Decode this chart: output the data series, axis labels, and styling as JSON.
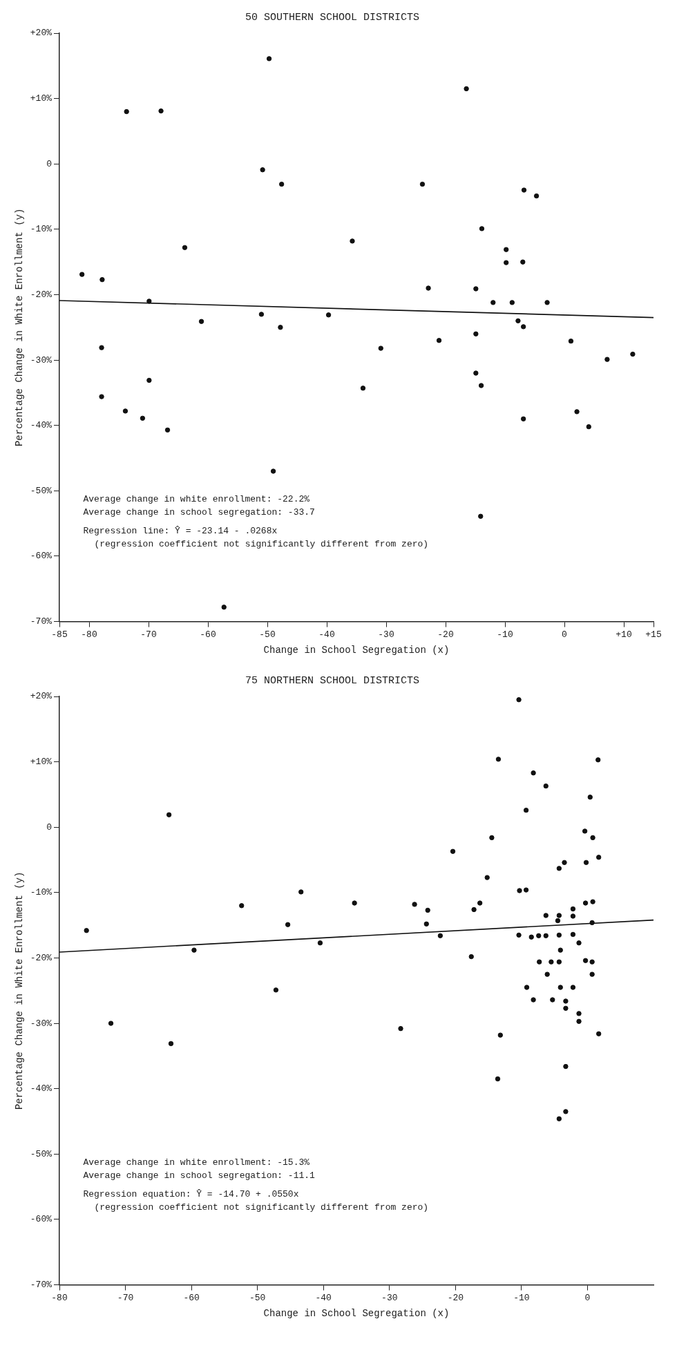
{
  "chart_data": [
    {
      "type": "scatter",
      "title": "50 SOUTHERN SCHOOL DISTRICTS",
      "xlabel": "Change in School Segregation (x)",
      "ylabel": "Percentage Change in White Enrollment (y)",
      "annotations": [
        "Average change in white enrollment: -22.2%",
        "Average change in school segregation: -33.7",
        "Regression line: Ŷ = -23.14 - .0268x",
        "(regression coefficient not significantly different from zero)"
      ],
      "xlim": [
        -85,
        15
      ],
      "xticks": [
        -85,
        -80,
        -70,
        -60,
        -50,
        -40,
        -30,
        -20,
        -10,
        0,
        {
          "value": 10,
          "label": "+10"
        },
        {
          "value": 15,
          "label": "+15"
        }
      ],
      "ylim": [
        -70,
        20
      ],
      "yticks": [
        {
          "value": 20,
          "label": "+20%"
        },
        {
          "value": 10,
          "label": "+10%"
        },
        0,
        {
          "value": -10,
          "label": "-10%"
        },
        {
          "value": -20,
          "label": "-20%"
        },
        {
          "value": -30,
          "label": "-30%"
        },
        {
          "value": -40,
          "label": "-40%"
        },
        {
          "value": -50,
          "label": "-50%"
        },
        {
          "value": -60,
          "label": "-60%"
        },
        {
          "value": -70,
          "label": "-70%"
        }
      ],
      "legend": false,
      "marker": "circle",
      "series": [
        {
          "type": "scatter",
          "color": "#111111",
          "x": [
            11.5,
            7.2,
            4.1,
            2.1,
            1.1,
            -2.9,
            -4.7,
            -6.8,
            -7.0,
            -6.9,
            -7.8,
            -6.9,
            -9.8,
            -9.8,
            -8.8,
            -12.0,
            -13.9,
            -14.9,
            -14.9,
            -14.9,
            -14.0,
            -14.1,
            -16.5,
            -21.1,
            -22.9,
            -23.9,
            -30.9,
            -33.9,
            -35.7,
            -39.7,
            -49.7,
            -47.6,
            -47.8,
            -50.8,
            -51.0,
            -49.0,
            -61.1,
            -63.9,
            -57.3,
            -67.9,
            -66.8,
            -69.9,
            -69.9,
            -71.0,
            -73.7,
            -73.9,
            -77.8,
            -77.9,
            -77.9,
            -81.2
          ],
          "values": [
            -29.1,
            -29.9,
            -40.2,
            -37.9,
            -27.1,
            -21.2,
            -4.9,
            -4.0,
            -15.0,
            -24.9,
            -24.0,
            -39.0,
            -13.1,
            -15.1,
            -21.2,
            -21.2,
            -9.9,
            -19.1,
            -26.0,
            -32.0,
            -33.9,
            -53.9,
            11.5,
            -27.0,
            -19.0,
            -3.1,
            -28.2,
            -34.3,
            -11.8,
            -23.1,
            16.1,
            -3.1,
            -25.0,
            -0.9,
            -23.0,
            -47.0,
            -24.1,
            -12.8,
            -67.8,
            8.1,
            -40.7,
            -21.0,
            -33.1,
            -38.9,
            8.0,
            -37.8,
            -17.7,
            -28.1,
            -35.6,
            -16.9
          ]
        },
        {
          "type": "line",
          "color": "#111111",
          "marker": "none",
          "line_style": "solid",
          "x": [
            -85,
            15
          ],
          "values": [
            -20.9,
            -23.5
          ]
        }
      ]
    },
    {
      "type": "scatter",
      "title": "75 NORTHERN SCHOOL DISTRICTS",
      "xlabel": "Change in School Segregation (x)",
      "ylabel": "Percentage Change in White Enrollment (y)",
      "annotations": [
        "Average change in white enrollment: -15.3%",
        "Average change in school segregation: -11.1",
        "Regression equation: Ŷ = -14.70 + .0550x",
        "(regression coefficient not significantly different from zero)"
      ],
      "xlim": [
        -80,
        10
      ],
      "xticks": [
        -80,
        -70,
        -60,
        -50,
        -40,
        -30,
        -20,
        -10,
        0
      ],
      "ylim": [
        -70,
        20
      ],
      "yticks": [
        {
          "value": 20,
          "label": "+20%"
        },
        {
          "value": 10,
          "label": "+10%"
        },
        0,
        {
          "value": -10,
          "label": "-10%"
        },
        {
          "value": -20,
          "label": "-20%"
        },
        {
          "value": -30,
          "label": "-30%"
        },
        {
          "value": -40,
          "label": "-40%"
        },
        {
          "value": -50,
          "label": "-50%"
        },
        {
          "value": -60,
          "label": "-60%"
        },
        {
          "value": -70,
          "label": "-70%"
        }
      ],
      "legend": false,
      "marker": "circle",
      "series": [
        {
          "type": "scatter",
          "color": "#111111",
          "x": [
            1.6,
            0.4,
            -0.4,
            0.8,
            1.7,
            -0.2,
            -3.5,
            -4.3,
            0.8,
            -0.3,
            -2.2,
            -2.2,
            0.7,
            -4.3,
            -4.5,
            -6.3,
            -2.2,
            -4.3,
            -4.1,
            -0.3,
            0.7,
            -4.3,
            -5.5,
            -7.3,
            0.7,
            -6.1,
            -2.2,
            -4.1,
            -5.3,
            -3.3,
            -3.3,
            -1.3,
            -1.3,
            1.7,
            -1.3,
            -6.3,
            -7.4,
            -8.5,
            -10.4,
            -10.3,
            -9.3,
            -9.3,
            -8.2,
            -6.3,
            -10.4,
            -13.5,
            -14.5,
            -15.2,
            -16.3,
            -17.2,
            -17.6,
            -20.4,
            -22.3,
            -24.2,
            -24.4,
            -26.2,
            -28.3,
            -35.3,
            -9.2,
            -8.2,
            -3.3,
            -3.3,
            -4.3,
            -13.2,
            -13.6,
            -43.4,
            -45.4,
            -47.2,
            -52.4,
            -63.4,
            -63.1,
            -72.2,
            -40.5,
            -59.6,
            -75.9
          ],
          "values": [
            10.3,
            4.6,
            -0.6,
            -1.6,
            -4.6,
            -5.4,
            -5.4,
            -6.3,
            -11.4,
            -11.6,
            -12.5,
            -13.6,
            -14.6,
            -13.5,
            -14.3,
            -13.5,
            -16.4,
            -16.5,
            -18.8,
            -20.4,
            -20.6,
            -20.6,
            -20.6,
            -20.6,
            -22.5,
            -22.5,
            -24.5,
            -24.5,
            -26.4,
            -26.6,
            -27.7,
            -28.5,
            -29.7,
            -31.6,
            -17.7,
            -16.6,
            -16.6,
            -16.8,
            -16.5,
            -9.7,
            -9.6,
            2.6,
            8.3,
            6.3,
            19.5,
            10.4,
            -1.6,
            -7.7,
            -11.6,
            -12.6,
            -19.8,
            -3.7,
            -16.6,
            -12.7,
            -14.8,
            -11.8,
            -30.8,
            -11.6,
            -24.5,
            -26.4,
            -36.6,
            -43.5,
            -44.6,
            -31.8,
            -38.5,
            -9.9,
            -14.9,
            -24.9,
            -12.0,
            1.9,
            -33.1,
            -30.0,
            -17.7,
            -18.8,
            -15.8
          ]
        },
        {
          "type": "line",
          "color": "#111111",
          "marker": "none",
          "line_style": "solid",
          "x": [
            -80,
            10
          ],
          "values": [
            -19.1,
            -14.2
          ]
        }
      ]
    }
  ]
}
